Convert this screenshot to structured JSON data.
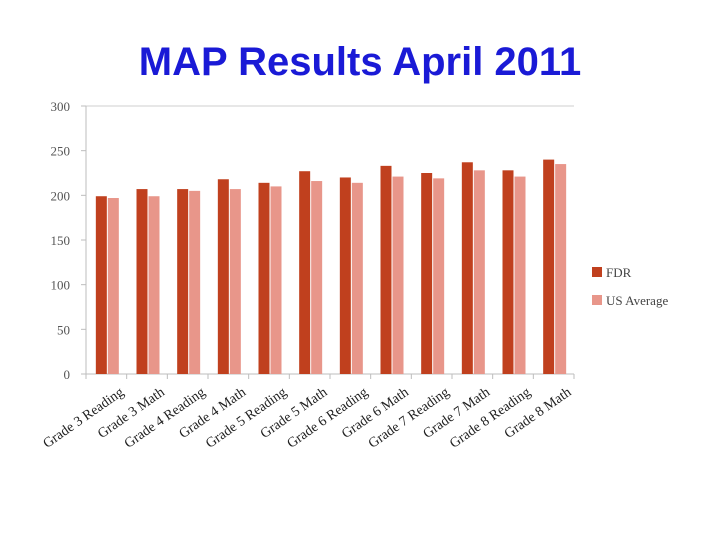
{
  "title": "MAP Results April 2011",
  "chart_data": {
    "type": "bar",
    "title": "MAP Results April 2011",
    "xlabel": "",
    "ylabel": "",
    "ylim": [
      0,
      300
    ],
    "yticks": [
      0,
      50,
      100,
      150,
      200,
      250,
      300
    ],
    "grid": false,
    "legend_position": "right",
    "categories": [
      "Grade 3 Reading",
      "Grade 3 Math",
      "Grade 4 Reading",
      "Grade 4 Math",
      "Grade 5 Reading",
      "Grade 5 Math",
      "Grade 6 Reading",
      "Grade 6 Math",
      "Grade 7 Reading",
      "Grade 7 Math",
      "Grade 8 Reading",
      "Grade 8 Math"
    ],
    "series": [
      {
        "name": "FDR",
        "color": "#c0401e",
        "values": [
          199,
          207,
          207,
          218,
          214,
          227,
          220,
          233,
          225,
          237,
          228,
          240
        ]
      },
      {
        "name": "US Average",
        "color": "#e8968a",
        "values": [
          197,
          199,
          205,
          207,
          210,
          216,
          214,
          221,
          219,
          228,
          221,
          235
        ]
      }
    ]
  }
}
